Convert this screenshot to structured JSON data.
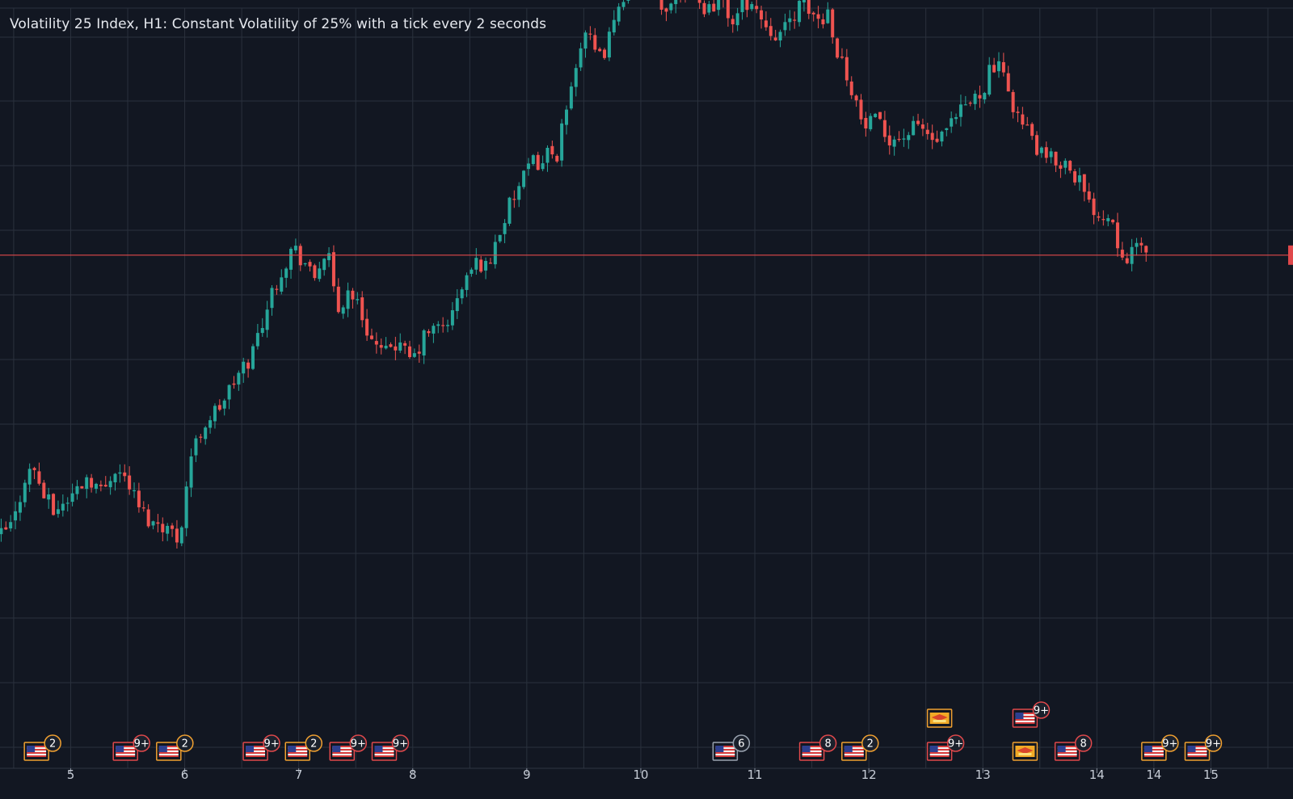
{
  "chart": {
    "title": "Volatility 25 Index, H1: Constant Volatility of 25% with a tick every 2 seconds"
  },
  "colors": {
    "background": "#121722",
    "grid": "#2a313d",
    "up": "#26a69a",
    "down": "#ef5350",
    "price_line": "#e0484b",
    "axis_text": "#c6ccd6",
    "event_us": "#e0484b",
    "event_orange": "#f0a030",
    "event_gray": "#9aa3b0"
  },
  "chart_data": {
    "type": "candlestick",
    "title": "Volatility 25 Index, H1: Constant Volatility of 25% with a tick every 2 seconds",
    "x_ticks": [
      {
        "label": "5",
        "day": 5
      },
      {
        "label": "6",
        "day": 6
      },
      {
        "label": "7",
        "day": 7
      },
      {
        "label": "8",
        "day": 8
      },
      {
        "label": "9",
        "day": 9
      },
      {
        "label": "10",
        "day": 10
      },
      {
        "label": "11",
        "day": 11
      },
      {
        "label": "12",
        "day": 12
      },
      {
        "label": "13",
        "day": 13
      },
      {
        "label": "14",
        "day": 14
      },
      {
        "label": "14",
        "day": 14.5
      },
      {
        "label": "15",
        "day": 15
      }
    ],
    "x_range": [
      4.38,
      15.72
    ],
    "y_range": [
      0,
      100
    ],
    "grid": true,
    "price_line": 57.0,
    "close_path": [
      [
        4.38,
        11.6
      ],
      [
        4.5,
        13.8
      ],
      [
        4.6,
        21.4
      ],
      [
        4.68,
        22.6
      ],
      [
        4.75,
        18.7
      ],
      [
        4.85,
        15.6
      ],
      [
        5.0,
        18.0
      ],
      [
        5.15,
        21.5
      ],
      [
        5.28,
        18.6
      ],
      [
        5.38,
        23.0
      ],
      [
        5.5,
        20.6
      ],
      [
        5.6,
        16.2
      ],
      [
        5.72,
        13.6
      ],
      [
        5.78,
        14.2
      ],
      [
        5.95,
        11.1
      ],
      [
        6.05,
        24.5
      ],
      [
        6.18,
        30.0
      ],
      [
        6.3,
        32.4
      ],
      [
        6.45,
        37.0
      ],
      [
        6.58,
        40.6
      ],
      [
        6.7,
        47.6
      ],
      [
        6.82,
        53.5
      ],
      [
        6.95,
        58.4
      ],
      [
        7.0,
        57.0
      ],
      [
        7.08,
        55.2
      ],
      [
        7.12,
        52.4
      ],
      [
        7.22,
        57.2
      ],
      [
        7.28,
        55.5
      ],
      [
        7.33,
        47.2
      ],
      [
        7.45,
        51.8
      ],
      [
        7.55,
        47.4
      ],
      [
        7.65,
        42.9
      ],
      [
        7.75,
        40.3
      ],
      [
        7.82,
        43.3
      ],
      [
        7.95,
        40.7
      ],
      [
        8.0,
        39.8
      ],
      [
        8.12,
        44.5
      ],
      [
        8.25,
        45.3
      ],
      [
        8.35,
        47.4
      ],
      [
        8.45,
        52.8
      ],
      [
        8.58,
        56.2
      ],
      [
        8.65,
        54.8
      ],
      [
        8.75,
        60.4
      ],
      [
        8.88,
        66.2
      ],
      [
        9.0,
        70.2
      ],
      [
        9.08,
        72.8
      ],
      [
        9.12,
        71.2
      ],
      [
        9.22,
        74.9
      ],
      [
        9.28,
        70.0
      ],
      [
        9.3,
        76.2
      ],
      [
        9.38,
        83.1
      ],
      [
        9.45,
        90.0
      ],
      [
        9.52,
        93.6
      ],
      [
        9.58,
        89.7
      ],
      [
        9.65,
        88.5
      ],
      [
        9.72,
        92.0
      ],
      [
        9.78,
        94.4
      ],
      [
        9.8,
        98.0
      ],
      [
        9.88,
        100.0
      ],
      [
        9.95,
        100.7
      ],
      [
        10.05,
        100.6
      ],
      [
        10.12,
        99.0
      ],
      [
        10.2,
        94.8
      ],
      [
        10.28,
        99.5
      ],
      [
        10.36,
        100.4
      ],
      [
        10.45,
        100.0
      ],
      [
        10.52,
        97.3
      ],
      [
        10.6,
        96.9
      ],
      [
        10.68,
        98.4
      ],
      [
        10.75,
        96.3
      ],
      [
        10.82,
        94.4
      ],
      [
        10.9,
        98.0
      ],
      [
        10.96,
        97.8
      ],
      [
        11.05,
        95.4
      ],
      [
        11.12,
        94.0
      ],
      [
        11.2,
        92.6
      ],
      [
        11.28,
        93.5
      ],
      [
        11.35,
        96.4
      ],
      [
        11.42,
        97.4
      ],
      [
        11.5,
        96.0
      ],
      [
        11.58,
        94.8
      ],
      [
        11.65,
        96.6
      ],
      [
        11.72,
        90.0
      ],
      [
        11.8,
        86.6
      ],
      [
        11.86,
        83.6
      ],
      [
        11.95,
        77.4
      ],
      [
        12.05,
        78.5
      ],
      [
        12.15,
        76.4
      ],
      [
        12.25,
        75.7
      ],
      [
        12.35,
        76.8
      ],
      [
        12.45,
        78.0
      ],
      [
        12.55,
        75.5
      ],
      [
        12.62,
        75.3
      ],
      [
        12.72,
        77.6
      ],
      [
        12.82,
        80.4
      ],
      [
        12.92,
        82.1
      ],
      [
        13.0,
        83.8
      ],
      [
        13.05,
        86.6
      ],
      [
        13.12,
        87.6
      ],
      [
        13.2,
        84.6
      ],
      [
        13.28,
        80.8
      ],
      [
        13.35,
        77.8
      ],
      [
        13.42,
        76.5
      ],
      [
        13.5,
        73.0
      ],
      [
        13.58,
        72.4
      ],
      [
        13.65,
        72.2
      ],
      [
        13.75,
        71.8
      ],
      [
        13.85,
        69.0
      ],
      [
        13.92,
        65.0
      ],
      [
        14.0,
        64.4
      ],
      [
        14.08,
        62.8
      ],
      [
        14.12,
        64.3
      ],
      [
        14.18,
        59.4
      ],
      [
        14.25,
        57.1
      ],
      [
        14.32,
        57.4
      ],
      [
        14.4,
        58.0
      ],
      [
        14.45,
        58.6
      ]
    ],
    "event_markers": [
      {
        "day": 4.7,
        "row": 1,
        "flag": "us",
        "badge": "2",
        "badge_style": "orange"
      },
      {
        "day": 5.48,
        "row": 1,
        "flag": "us",
        "badge": "9+",
        "badge_style": "red"
      },
      {
        "day": 5.86,
        "row": 1,
        "flag": "us",
        "badge": "2",
        "badge_style": "orange"
      },
      {
        "day": 6.62,
        "row": 1,
        "flag": "us",
        "badge": "9+",
        "badge_style": "red"
      },
      {
        "day": 6.99,
        "row": 1,
        "flag": "us",
        "badge": "2",
        "badge_style": "orange"
      },
      {
        "day": 7.38,
        "row": 1,
        "flag": "us",
        "badge": "9+",
        "badge_style": "red"
      },
      {
        "day": 7.75,
        "row": 1,
        "flag": "us",
        "badge": "9+",
        "badge_style": "red"
      },
      {
        "day": 10.74,
        "row": 1,
        "flag": "us",
        "badge": "6",
        "badge_style": "gray"
      },
      {
        "day": 11.5,
        "row": 1,
        "flag": "us",
        "badge": "8",
        "badge_style": "red"
      },
      {
        "day": 11.87,
        "row": 1,
        "flag": "us",
        "badge": "2",
        "badge_style": "orange"
      },
      {
        "day": 12.62,
        "row": 1,
        "flag": "us",
        "badge": "9+",
        "badge_style": "red"
      },
      {
        "day": 12.62,
        "row": 2,
        "flag": "other",
        "badge": "",
        "badge_style": "orange"
      },
      {
        "day": 13.37,
        "row": 2,
        "flag": "us",
        "badge": "9+",
        "badge_style": "red"
      },
      {
        "day": 13.37,
        "row": 1,
        "flag": "other",
        "badge": "",
        "badge_style": "orange"
      },
      {
        "day": 13.74,
        "row": 1,
        "flag": "us",
        "badge": "8",
        "badge_style": "red"
      },
      {
        "day": 14.5,
        "row": 1,
        "flag": "us",
        "badge": "9+",
        "badge_style": "orange"
      },
      {
        "day": 14.88,
        "row": 1,
        "flag": "us",
        "badge": "9+",
        "badge_style": "orange"
      }
    ]
  }
}
